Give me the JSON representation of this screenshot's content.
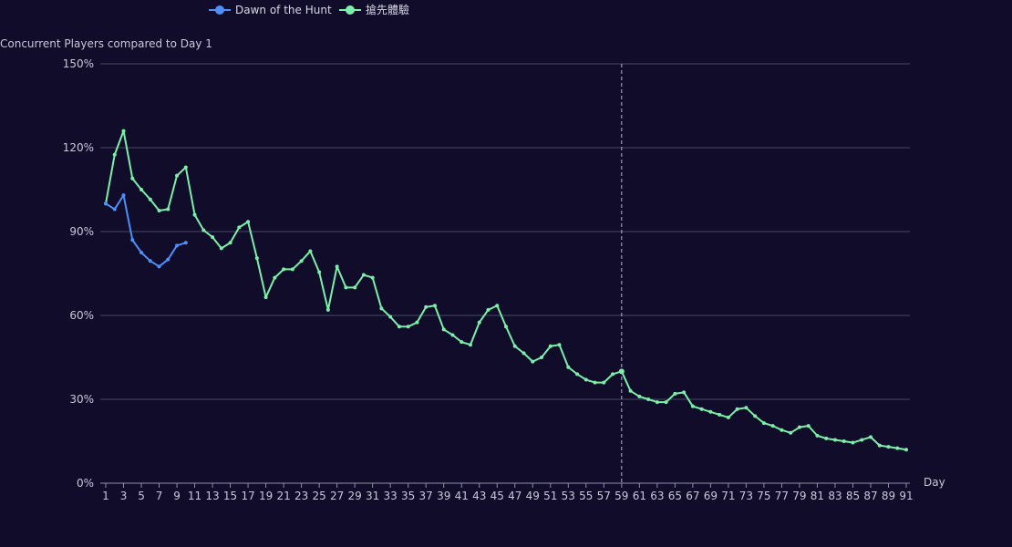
{
  "chart_data": {
    "type": "line",
    "ylabel": "Concurrent Players compared to Day 1",
    "xlabel": "Day",
    "ylim": [
      0,
      150
    ],
    "y_ticks": [
      "0%",
      "30%",
      "60%",
      "90%",
      "120%",
      "150%"
    ],
    "y_tick_values": [
      0,
      30,
      60,
      90,
      120,
      150
    ],
    "x_range": [
      1,
      91
    ],
    "x_tick_labels": [
      "1",
      "3",
      "5",
      "7",
      "9",
      "11",
      "13",
      "15",
      "17",
      "19",
      "21",
      "23",
      "25",
      "27",
      "29",
      "31",
      "33",
      "35",
      "37",
      "39",
      "41",
      "43",
      "45",
      "47",
      "49",
      "51",
      "53",
      "55",
      "57",
      "59",
      "61",
      "63",
      "65",
      "67",
      "69",
      "71",
      "73",
      "75",
      "77",
      "79",
      "81",
      "83",
      "85",
      "87",
      "89",
      "91"
    ],
    "marker_line_day": 59,
    "grid": true,
    "legend_position": "top",
    "series": [
      {
        "name": "Dawn of the Hunt",
        "color": "#4f8ff7",
        "x": [
          1,
          2,
          3,
          4,
          5,
          6,
          7,
          8,
          9,
          10
        ],
        "values": [
          100,
          98,
          103,
          87,
          82.5,
          79.5,
          77.5,
          80,
          85,
          86
        ]
      },
      {
        "name": "搶先體驗",
        "color": "#7cf0a8",
        "x": [
          1,
          2,
          3,
          4,
          5,
          6,
          7,
          8,
          9,
          10,
          11,
          12,
          13,
          14,
          15,
          16,
          17,
          18,
          19,
          20,
          21,
          22,
          23,
          24,
          25,
          26,
          27,
          28,
          29,
          30,
          31,
          32,
          33,
          34,
          35,
          36,
          37,
          38,
          39,
          40,
          41,
          42,
          43,
          44,
          45,
          46,
          47,
          48,
          49,
          50,
          51,
          52,
          53,
          54,
          55,
          56,
          57,
          58,
          59,
          60,
          61,
          62,
          63,
          64,
          65,
          66,
          67,
          68,
          69,
          70,
          71,
          72,
          73,
          74,
          75,
          76,
          77,
          78,
          79,
          80,
          81,
          82,
          83,
          84,
          85,
          86,
          87,
          88,
          89,
          90,
          91
        ],
        "values": [
          100,
          117.5,
          126,
          109,
          105,
          101.5,
          97.5,
          98,
          110,
          113,
          96,
          90.5,
          88,
          84,
          86,
          91.5,
          93.5,
          80.5,
          66.5,
          73.5,
          76.5,
          76.5,
          79.5,
          83,
          75.5,
          62,
          77.5,
          70,
          70,
          74.5,
          73.5,
          62.5,
          59.5,
          56,
          56,
          57.5,
          63,
          63.5,
          55,
          53,
          50.5,
          49.5,
          57.5,
          62,
          63.5,
          56,
          49,
          46.5,
          43.5,
          45,
          49,
          49.5,
          41.5,
          39,
          37,
          36,
          36,
          39,
          40,
          33,
          31,
          30,
          29,
          29,
          32,
          32.5,
          27.5,
          26.5,
          25.5,
          24.5,
          23.5,
          26.5,
          27,
          24,
          21.5,
          20.5,
          19,
          18,
          20,
          20.5,
          17,
          16,
          15.5,
          15,
          14.5,
          15.5,
          16.5,
          13.5,
          13,
          12.5,
          12
        ]
      }
    ]
  }
}
